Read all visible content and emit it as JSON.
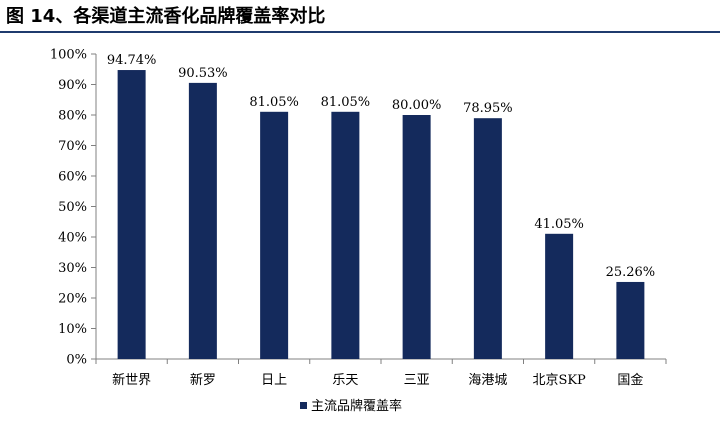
{
  "title": "图 14、各渠道主流香化品牌覆盖率对比",
  "colors": {
    "bar": "#142a5c",
    "axis": "#808080",
    "title_rule": "#1f3b6e"
  },
  "chart_data": {
    "type": "bar",
    "categories": [
      "新世界",
      "新罗",
      "日上",
      "乐天",
      "三亚",
      "海港城",
      "北京SKP",
      "国金"
    ],
    "series": [
      {
        "name": "主流品牌覆盖率",
        "values": [
          94.74,
          90.53,
          81.05,
          81.05,
          80.0,
          78.95,
          41.05,
          25.26
        ],
        "labels": [
          "94.74%",
          "90.53%",
          "81.05%",
          "81.05%",
          "80.00%",
          "78.95%",
          "41.05%",
          "25.26%"
        ]
      }
    ],
    "ylim": [
      0,
      100
    ],
    "yticks": [
      "0%",
      "10%",
      "20%",
      "30%",
      "40%",
      "50%",
      "60%",
      "70%",
      "80%",
      "90%",
      "100%"
    ],
    "grid": false,
    "legend": "bottom-center"
  }
}
